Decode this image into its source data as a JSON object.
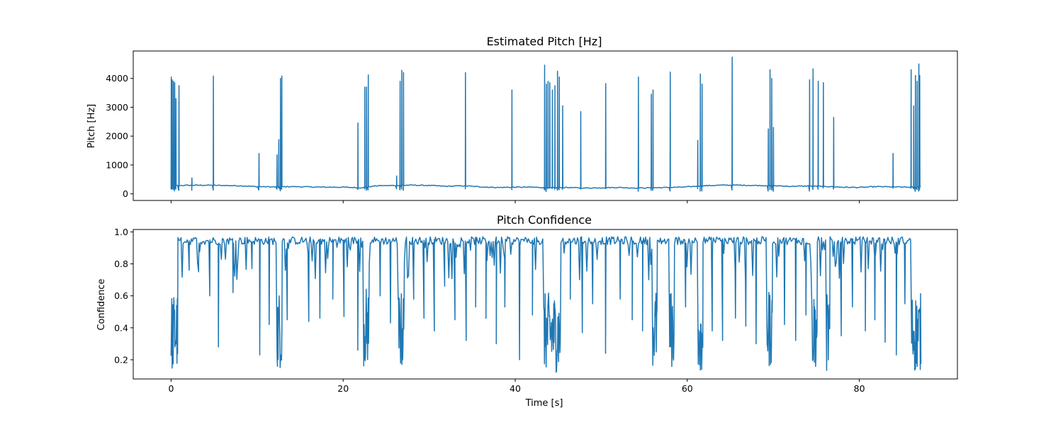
{
  "chart_data": [
    {
      "type": "line",
      "title": "Estimated Pitch [Hz]",
      "xlabel": "",
      "ylabel": "Pitch [Hz]",
      "xlim": [
        -4.4,
        91.4
      ],
      "ylim": [
        -230,
        4950
      ],
      "yticks": [
        0,
        1000,
        2000,
        3000,
        4000
      ],
      "xticks": [
        0,
        20,
        40,
        60,
        80
      ],
      "xticklabels_visible": false,
      "grid": false,
      "color": "#1f77b4",
      "baseline": [
        [
          0,
          280
        ],
        [
          0.9,
          290
        ],
        [
          2,
          295
        ],
        [
          4,
          300
        ],
        [
          5,
          295
        ],
        [
          6,
          290
        ],
        [
          8,
          280
        ],
        [
          10,
          250
        ],
        [
          12,
          240
        ],
        [
          14,
          250
        ],
        [
          16,
          240
        ],
        [
          18,
          230
        ],
        [
          20,
          230
        ],
        [
          22,
          210
        ],
        [
          24,
          280
        ],
        [
          26,
          290
        ],
        [
          28,
          300
        ],
        [
          30,
          290
        ],
        [
          32,
          260
        ],
        [
          34,
          280
        ],
        [
          36,
          240
        ],
        [
          38,
          220
        ],
        [
          40,
          230
        ],
        [
          42,
          230
        ],
        [
          44,
          210
        ],
        [
          46,
          220
        ],
        [
          48,
          200
        ],
        [
          50,
          210
        ],
        [
          52,
          220
        ],
        [
          54,
          200
        ],
        [
          56,
          210
        ],
        [
          58,
          220
        ],
        [
          60,
          240
        ],
        [
          62,
          280
        ],
        [
          64,
          300
        ],
        [
          66,
          300
        ],
        [
          68,
          290
        ],
        [
          70,
          280
        ],
        [
          72,
          260
        ],
        [
          74,
          270
        ],
        [
          76,
          260
        ],
        [
          78,
          230
        ],
        [
          80,
          220
        ],
        [
          82,
          250
        ],
        [
          84,
          240
        ],
        [
          86,
          230
        ],
        [
          87,
          250
        ]
      ],
      "spikes": [
        [
          0,
          4050
        ],
        [
          0.1,
          3950
        ],
        [
          0.25,
          3900
        ],
        [
          0.4,
          3850
        ],
        [
          0.55,
          3300
        ],
        [
          0.9,
          3750
        ],
        [
          2.4,
          550
        ],
        [
          4.9,
          4080
        ],
        [
          10.2,
          1400
        ],
        [
          12.3,
          1350
        ],
        [
          12.5,
          1880
        ],
        [
          12.7,
          4000
        ],
        [
          12.85,
          4080
        ],
        [
          21.7,
          2450
        ],
        [
          22.5,
          3700
        ],
        [
          22.7,
          3700
        ],
        [
          22.9,
          4120
        ],
        [
          26.2,
          620
        ],
        [
          26.6,
          3900
        ],
        [
          26.8,
          4280
        ],
        [
          27.0,
          4200
        ],
        [
          34.2,
          4200
        ],
        [
          39.6,
          3600
        ],
        [
          43.4,
          4460
        ],
        [
          43.6,
          3800
        ],
        [
          43.8,
          3900
        ],
        [
          44.0,
          3850
        ],
        [
          44.3,
          3600
        ],
        [
          44.6,
          3750
        ],
        [
          44.9,
          4250
        ],
        [
          45.1,
          4050
        ],
        [
          45.5,
          3050
        ],
        [
          47.6,
          2850
        ],
        [
          50.5,
          3820
        ],
        [
          54.3,
          4050
        ],
        [
          55.8,
          3450
        ],
        [
          56.0,
          3600
        ],
        [
          58.0,
          4220
        ],
        [
          61.2,
          1850
        ],
        [
          61.5,
          4150
        ],
        [
          61.7,
          3800
        ],
        [
          65.2,
          4740
        ],
        [
          69.4,
          2250
        ],
        [
          69.6,
          4300
        ],
        [
          69.8,
          4000
        ],
        [
          70.0,
          2300
        ],
        [
          74.2,
          3950
        ],
        [
          74.6,
          4330
        ],
        [
          75.2,
          3900
        ],
        [
          75.8,
          3850
        ],
        [
          77.0,
          2650
        ],
        [
          83.9,
          1400
        ],
        [
          86.0,
          4300
        ],
        [
          86.3,
          3050
        ],
        [
          86.5,
          4100
        ],
        [
          86.7,
          3900
        ],
        [
          86.9,
          4500
        ],
        [
          87.0,
          4100
        ]
      ]
    },
    {
      "type": "line",
      "title": "Pitch Confidence",
      "xlabel": "Time [s]",
      "ylabel": "Confidence",
      "xlim": [
        -4.4,
        91.4
      ],
      "ylim": [
        0.08,
        1.015
      ],
      "yticks": [
        0.2,
        0.4,
        0.6,
        0.8,
        1.0
      ],
      "yticklabels": [
        "0.2",
        "0.4",
        "0.6",
        "0.8",
        "1.0"
      ],
      "xticks": [
        0,
        20,
        40,
        60,
        80
      ],
      "xticklabels": [
        "0",
        "20",
        "40",
        "60",
        "80"
      ],
      "grid": false,
      "color": "#1f77b4",
      "low_segments": [
        [
          0,
          0.8,
          0.12
        ],
        [
          12.2,
          12.9,
          0.14
        ],
        [
          22.4,
          23.0,
          0.16
        ],
        [
          26.4,
          27.1,
          0.13
        ],
        [
          43.3,
          45.3,
          0.12
        ],
        [
          55.9,
          56.5,
          0.15
        ],
        [
          57.9,
          58.5,
          0.14
        ],
        [
          61.2,
          61.8,
          0.13
        ],
        [
          69.2,
          69.9,
          0.15
        ],
        [
          74.4,
          75.1,
          0.14
        ],
        [
          76.1,
          76.6,
          0.12
        ],
        [
          86.0,
          87.2,
          0.12
        ]
      ],
      "drops": [
        [
          2.1,
          0.76
        ],
        [
          3.2,
          0.75
        ],
        [
          4.5,
          0.6
        ],
        [
          5.5,
          0.28
        ],
        [
          7.2,
          0.62
        ],
        [
          9.4,
          0.77
        ],
        [
          10.3,
          0.23
        ],
        [
          11.4,
          0.42
        ],
        [
          13.5,
          0.45
        ],
        [
          16.0,
          0.44
        ],
        [
          17.3,
          0.46
        ],
        [
          18.8,
          0.58
        ],
        [
          20.1,
          0.47
        ],
        [
          21.7,
          0.26
        ],
        [
          24.3,
          0.6
        ],
        [
          25.5,
          0.43
        ],
        [
          28.2,
          0.58
        ],
        [
          29.4,
          0.46
        ],
        [
          30.6,
          0.38
        ],
        [
          31.8,
          0.66
        ],
        [
          33.0,
          0.45
        ],
        [
          34.3,
          0.32
        ],
        [
          35.4,
          0.53
        ],
        [
          36.6,
          0.46
        ],
        [
          37.8,
          0.3
        ],
        [
          38.8,
          0.53
        ],
        [
          40.5,
          0.2
        ],
        [
          42.0,
          0.48
        ],
        [
          46.4,
          0.58
        ],
        [
          47.8,
          0.37
        ],
        [
          49.0,
          0.55
        ],
        [
          50.5,
          0.24
        ],
        [
          52.2,
          0.58
        ],
        [
          53.6,
          0.45
        ],
        [
          54.8,
          0.38
        ],
        [
          59.8,
          0.53
        ],
        [
          62.9,
          0.38
        ],
        [
          64.1,
          0.32
        ],
        [
          65.6,
          0.46
        ],
        [
          66.8,
          0.41
        ],
        [
          68.0,
          0.3
        ],
        [
          71.3,
          0.42
        ],
        [
          72.6,
          0.32
        ],
        [
          73.8,
          0.48
        ],
        [
          77.9,
          0.35
        ],
        [
          79.2,
          0.53
        ],
        [
          80.7,
          0.38
        ],
        [
          81.8,
          0.45
        ],
        [
          83.0,
          0.31
        ],
        [
          84.3,
          0.23
        ],
        [
          85.3,
          0.55
        ]
      ]
    }
  ]
}
